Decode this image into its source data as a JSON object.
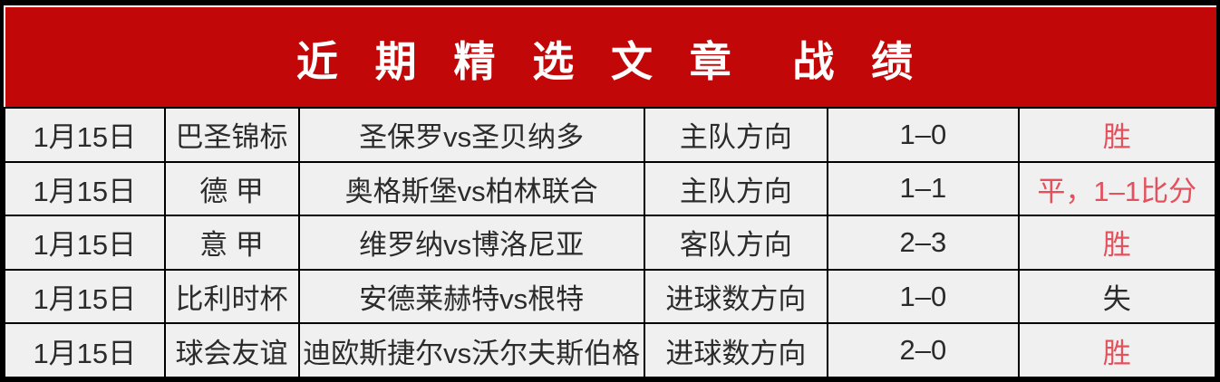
{
  "header": {
    "title": "近 期 精 选 文 章  战 绩",
    "bg_color": "#c10708",
    "text_color": "#ffffff"
  },
  "colors": {
    "accent_red": "#e4505c",
    "text_dark": "#2b2b2b",
    "cell_bg": "#f0f0f0",
    "border": "#000000"
  },
  "rows": [
    {
      "date": "1月15日",
      "league": "巴圣锦标",
      "match": "圣保罗vs圣贝纳多",
      "direction": "主队方向",
      "score": "1–0",
      "result": "胜",
      "result_color": "#e4505c"
    },
    {
      "date": "1月15日",
      "league": "德 甲",
      "match": "奥格斯堡vs柏林联合",
      "direction": "主队方向",
      "score": "1–1",
      "result": "平，1–1比分",
      "result_color": "#e4505c"
    },
    {
      "date": "1月15日",
      "league": "意 甲",
      "match": "维罗纳vs博洛尼亚",
      "direction": "客队方向",
      "score": "2–3",
      "result": "胜",
      "result_color": "#e4505c"
    },
    {
      "date": "1月15日",
      "league": "比利时杯",
      "match": "安德莱赫特vs根特",
      "direction": "进球数方向",
      "score": "1–0",
      "result": "失",
      "result_color": "#2b2b2b"
    },
    {
      "date": "1月15日",
      "league": "球会友谊",
      "match": "迪欧斯捷尔vs沃尔夫斯伯格",
      "direction": "进球数方向",
      "score": "2–0",
      "result": "胜",
      "result_color": "#e4505c"
    }
  ]
}
